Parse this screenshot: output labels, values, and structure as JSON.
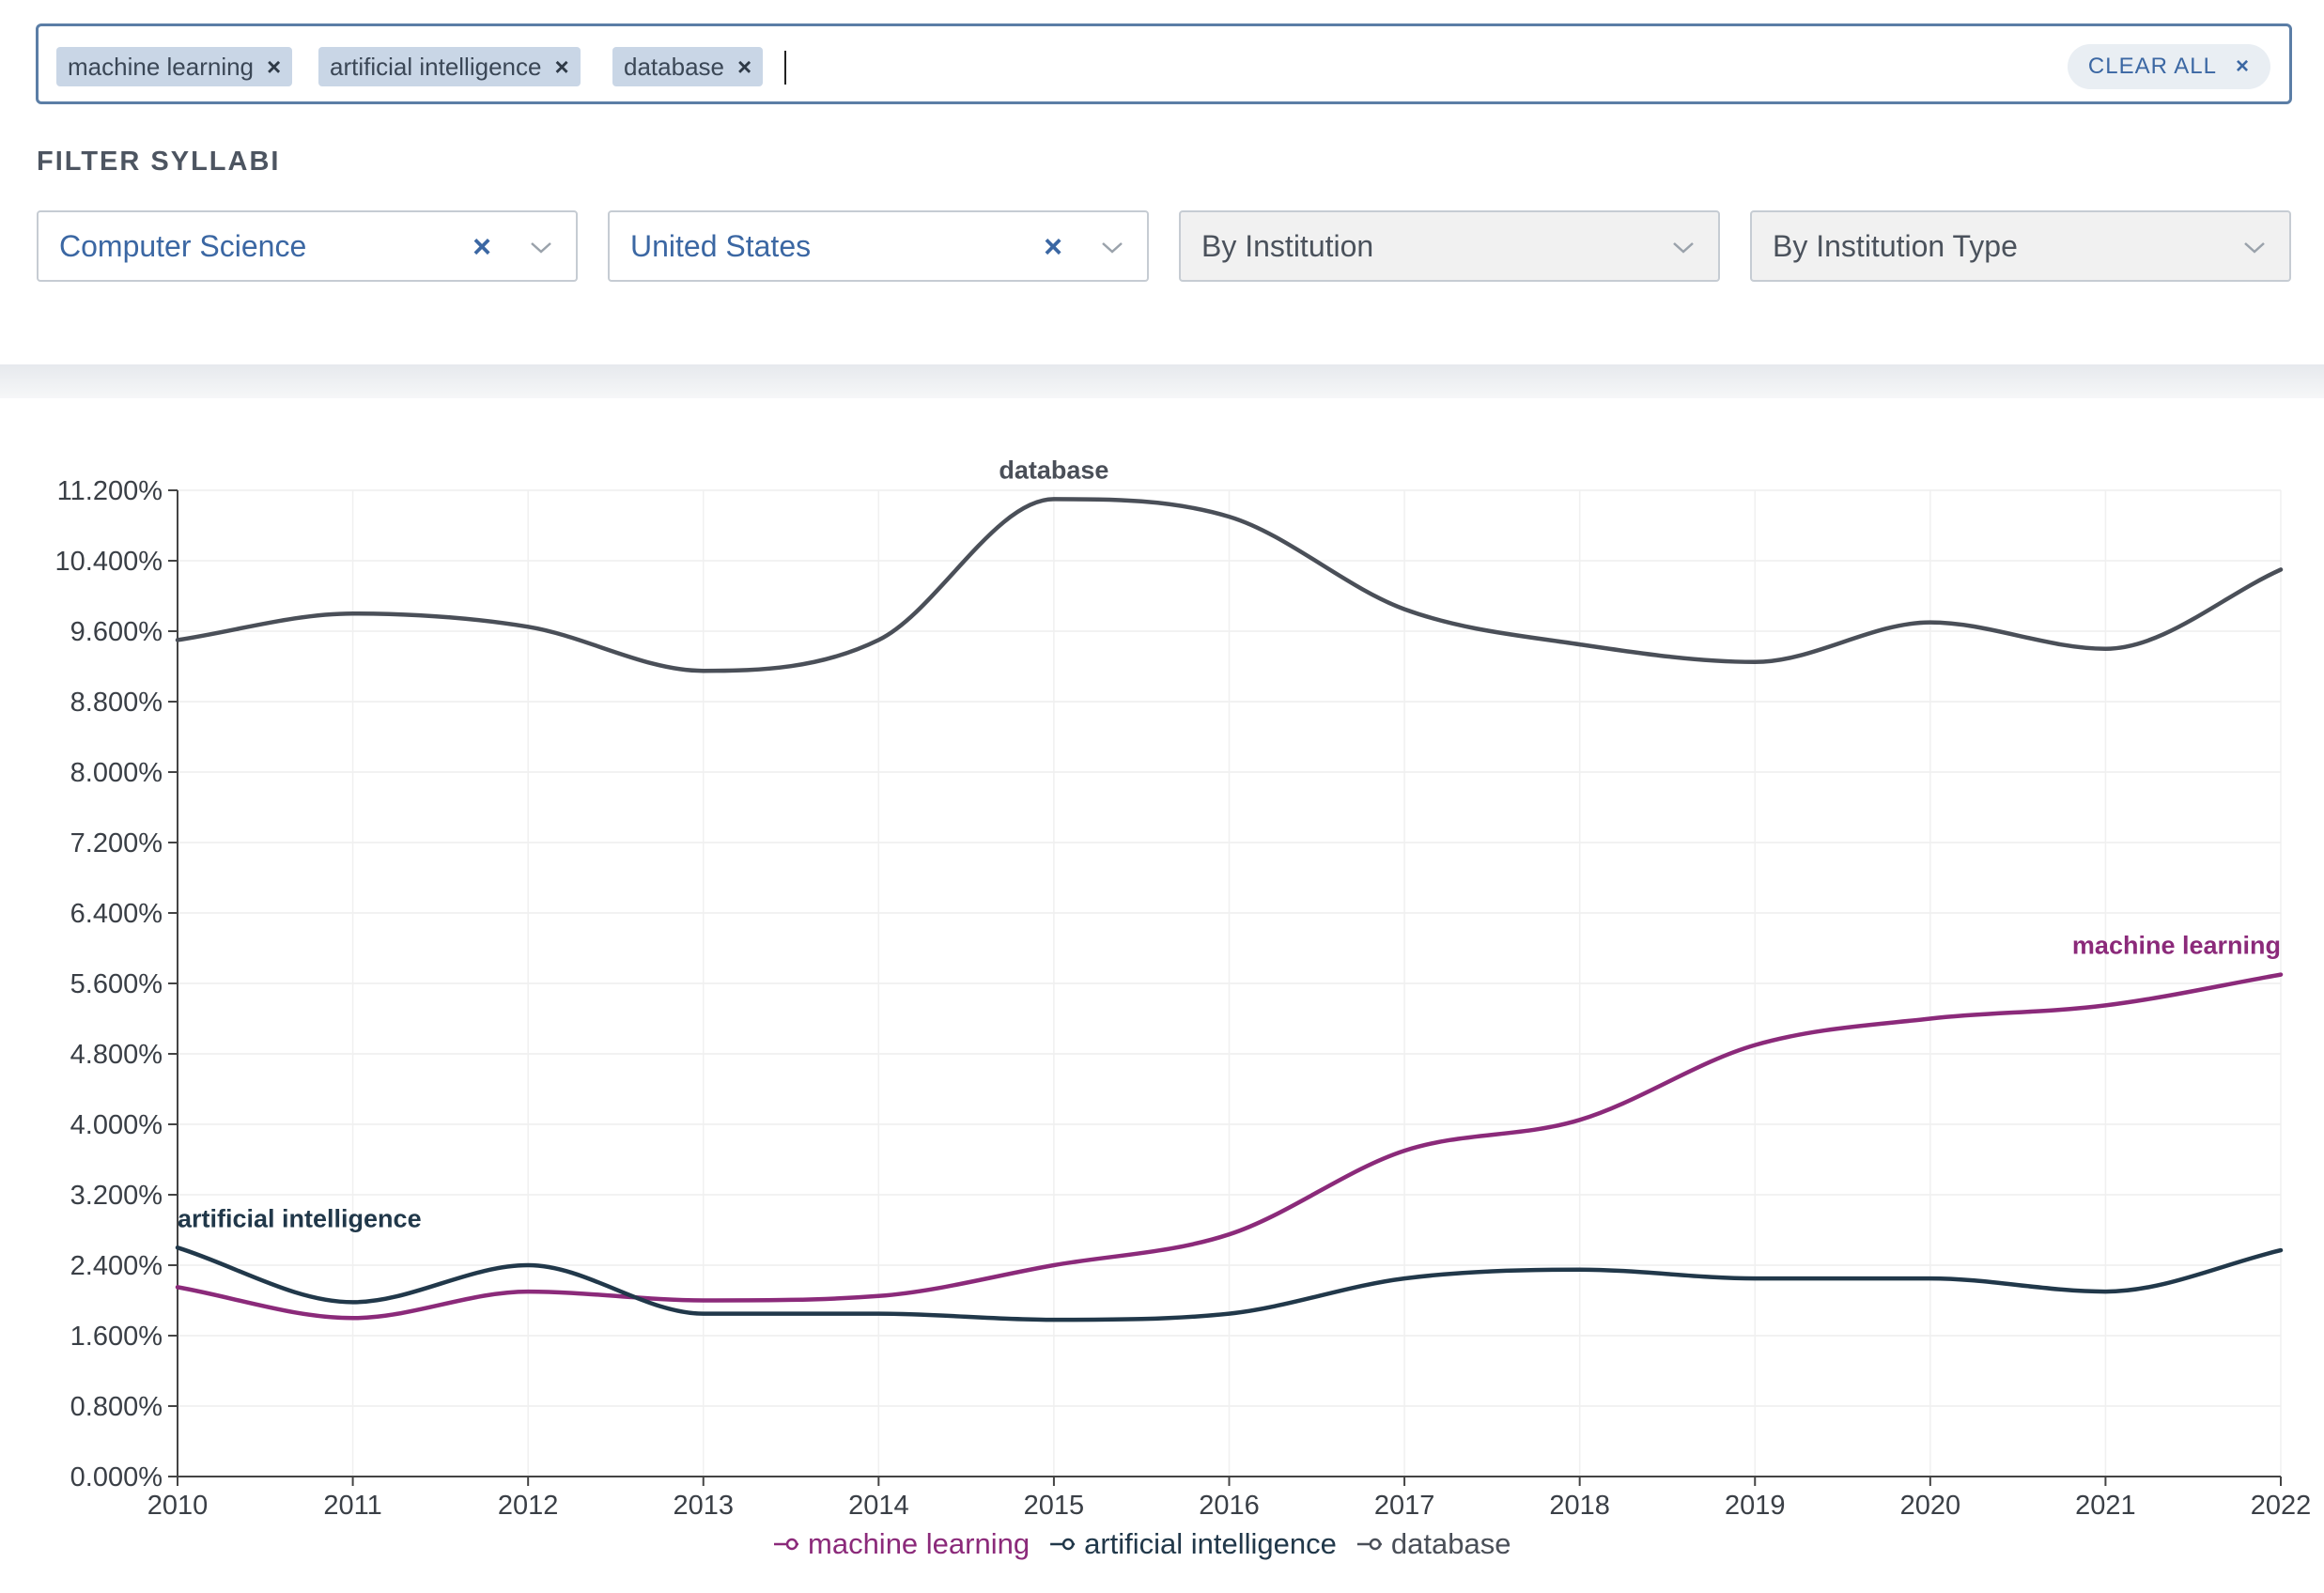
{
  "search": {
    "tags": [
      {
        "label": "machine learning"
      },
      {
        "label": "artificial intelligence"
      },
      {
        "label": "database"
      }
    ],
    "remove_symbol": "×",
    "clear_all": "CLEAR ALL",
    "clear_all_symbol": "×"
  },
  "filters": {
    "title": "FILTER SYLLABI",
    "selects": [
      {
        "value": "Computer Science",
        "state": "active"
      },
      {
        "value": "United States",
        "state": "active"
      },
      {
        "value": "By Institution",
        "state": "empty"
      },
      {
        "value": "By Institution Type",
        "state": "empty"
      }
    ],
    "clear_symbol": "×"
  },
  "colors": {
    "machine_learning": "#8b2a7a",
    "artificial_intelligence": "#21384a",
    "database": "#4a4f58",
    "accent": "#3b67a3"
  },
  "chart_data": {
    "type": "line",
    "x": [
      2010,
      2011,
      2012,
      2013,
      2014,
      2015,
      2016,
      2017,
      2018,
      2019,
      2020,
      2021,
      2022
    ],
    "ylim": [
      0,
      11.2
    ],
    "yticks": [
      "0.000%",
      "0.800%",
      "1.600%",
      "2.400%",
      "3.200%",
      "4.000%",
      "4.800%",
      "5.600%",
      "6.400%",
      "7.200%",
      "8.000%",
      "8.800%",
      "9.600%",
      "10.400%",
      "11.200%"
    ],
    "grid": true,
    "legend_position": "bottom",
    "series": [
      {
        "name": "machine learning",
        "color": "#8b2a7a",
        "values": [
          2.15,
          1.8,
          2.1,
          2.0,
          2.05,
          2.4,
          2.75,
          3.7,
          4.05,
          4.9,
          5.2,
          5.35,
          5.7
        ]
      },
      {
        "name": "artificial intelligence",
        "color": "#21384a",
        "values": [
          2.6,
          1.98,
          2.4,
          1.85,
          1.85,
          1.78,
          1.85,
          2.25,
          2.35,
          2.25,
          2.25,
          2.1,
          2.57
        ]
      },
      {
        "name": "database",
        "color": "#4a4f58",
        "values": [
          9.5,
          9.8,
          9.65,
          9.15,
          9.5,
          11.1,
          10.9,
          9.85,
          9.45,
          9.25,
          9.7,
          9.4,
          10.3
        ]
      }
    ]
  }
}
